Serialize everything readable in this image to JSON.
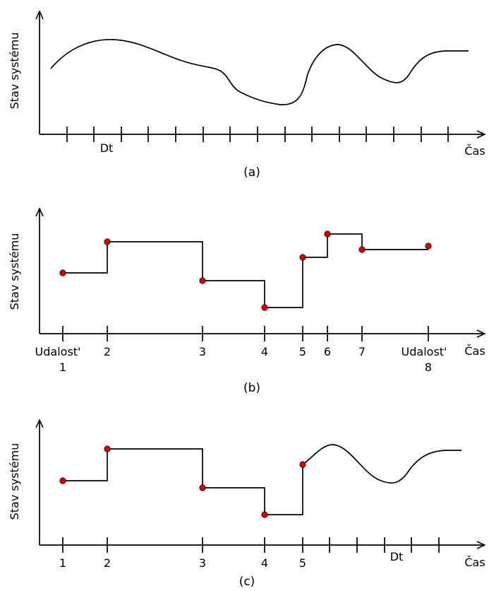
{
  "colors": {
    "event_marker": "#cc0000",
    "line": "#000000"
  },
  "panels": [
    {
      "id": "a",
      "caption": "(a)",
      "ylabel": "Stav systému",
      "xlabel": "Čas",
      "tick_labels": [
        {
          "text": "Dt"
        }
      ]
    },
    {
      "id": "b",
      "caption": "(b)",
      "ylabel": "Stav systému",
      "xlabel": "Čas",
      "tick_labels": [
        {
          "text": "Udalost'"
        },
        {
          "text": "1"
        },
        {
          "text": "2"
        },
        {
          "text": "3"
        },
        {
          "text": "4"
        },
        {
          "text": "5"
        },
        {
          "text": "6"
        },
        {
          "text": "7"
        },
        {
          "text": "Udalost'"
        },
        {
          "text": "8"
        }
      ]
    },
    {
      "id": "c",
      "caption": "(c)",
      "ylabel": "Stav systému",
      "xlabel": "Čas",
      "tick_labels": [
        {
          "text": "1"
        },
        {
          "text": "2"
        },
        {
          "text": "3"
        },
        {
          "text": "4"
        },
        {
          "text": "5"
        },
        {
          "text": "Dt"
        }
      ]
    }
  ]
}
